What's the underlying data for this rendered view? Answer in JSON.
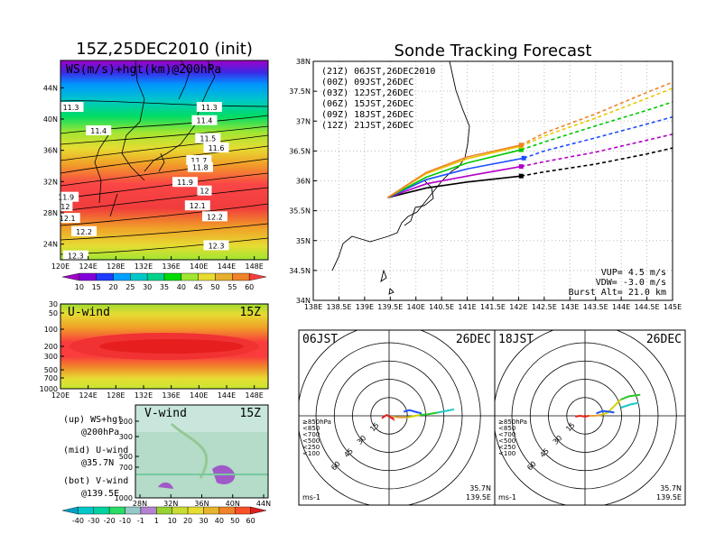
{
  "figure": {
    "left_title": "15Z,25DEC2010 (init)",
    "right_title": "Sonde Tracking Forecast"
  },
  "chart_data": [
    {
      "type": "heatmap",
      "name": "ws-hgt-map",
      "panel_label": "WS(m/s)+hgt(km)@200hPa",
      "lon_ticks": [
        "120E",
        "124E",
        "128E",
        "132E",
        "136E",
        "140E",
        "144E",
        "148E"
      ],
      "lat_ticks": [
        "24N",
        "28N",
        "32N",
        "36N",
        "40N",
        "44N"
      ],
      "xlim": [
        120,
        150
      ],
      "ylim": [
        22,
        47.5
      ],
      "colorbar": {
        "labels": [
          "10",
          "15",
          "20",
          "25",
          "30",
          "35",
          "40",
          "45",
          "50",
          "55",
          "60"
        ],
        "colors": [
          "#a000c8",
          "#8200dc",
          "#1e3cff",
          "#00a0ff",
          "#00c8c8",
          "#00d28c",
          "#00dc00",
          "#a0e632",
          "#e6dc32",
          "#e6af2d",
          "#f08228",
          "#fa3c3c"
        ]
      },
      "contour_labels": [
        {
          "text": "11.3",
          "lon": 121.5,
          "lat": 41.5
        },
        {
          "text": "11.3",
          "lon": 141.5,
          "lat": 41.5
        },
        {
          "text": "11.4",
          "lon": 125.5,
          "lat": 38.5
        },
        {
          "text": "11.4",
          "lon": 140.8,
          "lat": 39.8
        },
        {
          "text": "11.5",
          "lon": 141.3,
          "lat": 37.5
        },
        {
          "text": "11.6",
          "lon": 142.5,
          "lat": 36.3
        },
        {
          "text": "11.7",
          "lon": 140.0,
          "lat": 34.7
        },
        {
          "text": "11.8",
          "lon": 140.2,
          "lat": 33.8
        },
        {
          "text": "11.9",
          "lon": 138.0,
          "lat": 31.9
        },
        {
          "text": "12",
          "lon": 140.8,
          "lat": 30.8
        },
        {
          "text": "12.1",
          "lon": 139.8,
          "lat": 28.9
        },
        {
          "text": "12.2",
          "lon": 142.3,
          "lat": 27.5
        },
        {
          "text": "12.3",
          "lon": 142.5,
          "lat": 23.8
        },
        {
          "text": "11.9",
          "lon": 120.8,
          "lat": 30.0
        },
        {
          "text": "12",
          "lon": 120.7,
          "lat": 28.8
        },
        {
          "text": "12.1",
          "lon": 121.0,
          "lat": 27.3
        },
        {
          "text": "12.2",
          "lon": 123.4,
          "lat": 25.6
        },
        {
          "text": "12.3",
          "lon": 122.2,
          "lat": 22.5
        }
      ]
    },
    {
      "type": "heatmap",
      "name": "u-wind-section",
      "panel_label": "U-wind",
      "time_label": "15Z",
      "lon_ticks": [
        "120E",
        "124E",
        "128E",
        "132E",
        "136E",
        "140E",
        "144E",
        "148E"
      ],
      "p_ticks": [
        "30",
        "50",
        "100",
        "200",
        "300",
        "500",
        "700",
        "1000"
      ]
    },
    {
      "type": "heatmap",
      "name": "v-wind-section",
      "panel_label": "V-wind",
      "time_label": "15Z",
      "lat_ticks": [
        "28N",
        "32N",
        "36N",
        "40N",
        "44N"
      ],
      "p_ticks": [
        "200",
        "300",
        "500",
        "700",
        "1000"
      ],
      "colorbar": {
        "labels": [
          "-40",
          "-30",
          "-20",
          "-10",
          "-1",
          "1",
          "10",
          "20",
          "30",
          "40",
          "50",
          "60"
        ],
        "colors": [
          "#00a0c8",
          "#00c8c8",
          "#00d2a0",
          "#28dc64",
          "#96c8c8",
          "#b482d2",
          "#96d232",
          "#c8dc32",
          "#e6dc32",
          "#e6b42d",
          "#f08228",
          "#fa5028",
          "#dc1e1e"
        ]
      }
    },
    {
      "type": "line",
      "name": "sonde-tracks",
      "xlabel": "",
      "ylabel": "",
      "xlim": [
        138,
        145
      ],
      "ylim": [
        34,
        38
      ],
      "x_ticks": [
        "138E",
        "138.5E",
        "139E",
        "139.5E",
        "140E",
        "140.5E",
        "141E",
        "141.5E",
        "142E",
        "142.5E",
        "143E",
        "143.5E",
        "144E",
        "144.5E",
        "145E"
      ],
      "y_ticks": [
        "34N",
        "34.5N",
        "35N",
        "35.5N",
        "36N",
        "36.5N",
        "37N",
        "37.5N",
        "38N"
      ],
      "series": [
        {
          "name": "(21Z)  06JST,26DEC2010",
          "color": "#000000",
          "points": [
            [
              139.45,
              35.72
            ],
            [
              140.2,
              35.88
            ],
            [
              141.0,
              35.98
            ],
            [
              142.05,
              36.08
            ],
            [
              142.5,
              36.15
            ],
            [
              143.5,
              36.28
            ],
            [
              144.5,
              36.45
            ],
            [
              145.0,
              36.55
            ]
          ]
        },
        {
          "name": "(00Z)  09JST,26DEC",
          "color": "#b400c8",
          "points": [
            [
              139.45,
              35.72
            ],
            [
              140.2,
              35.95
            ],
            [
              141.0,
              36.08
            ],
            [
              142.05,
              36.24
            ],
            [
              142.5,
              36.32
            ],
            [
              143.5,
              36.48
            ],
            [
              144.5,
              36.68
            ],
            [
              145.0,
              36.78
            ]
          ]
        },
        {
          "name": "(03Z)  12JST,26DEC",
          "color": "#1e50ff",
          "points": [
            [
              139.45,
              35.72
            ],
            [
              140.2,
              36.02
            ],
            [
              141.0,
              36.2
            ],
            [
              142.1,
              36.38
            ],
            [
              142.5,
              36.5
            ],
            [
              143.5,
              36.72
            ],
            [
              144.5,
              36.95
            ],
            [
              145.0,
              37.07
            ]
          ]
        },
        {
          "name": "(06Z)  15JST,26DEC",
          "color": "#00c800",
          "points": [
            [
              139.45,
              35.72
            ],
            [
              140.2,
              36.06
            ],
            [
              141.0,
              36.3
            ],
            [
              142.05,
              36.52
            ],
            [
              142.5,
              36.65
            ],
            [
              143.5,
              36.92
            ],
            [
              144.5,
              37.18
            ],
            [
              145.0,
              37.32
            ]
          ]
        },
        {
          "name": "(09Z)  18JST,26DEC",
          "color": "#e6c800",
          "points": [
            [
              139.45,
              35.72
            ],
            [
              140.2,
              36.12
            ],
            [
              141.0,
              36.37
            ],
            [
              142.05,
              36.58
            ],
            [
              142.5,
              36.75
            ],
            [
              143.5,
              37.05
            ],
            [
              144.5,
              37.38
            ],
            [
              145.0,
              37.55
            ]
          ]
        },
        {
          "name": "(12Z)  21JST,26DEC",
          "color": "#f08228",
          "points": [
            [
              139.45,
              35.72
            ],
            [
              140.2,
              36.14
            ],
            [
              141.0,
              36.4
            ],
            [
              142.05,
              36.6
            ],
            [
              142.5,
              36.8
            ],
            [
              143.5,
              37.12
            ],
            [
              144.5,
              37.48
            ],
            [
              145.0,
              37.65
            ]
          ]
        }
      ],
      "info": {
        "line1": "VUP= 4.5 m/s",
        "line2": "VDW= -3.0 m/s",
        "line3": "Burst Alt= 21.0 km"
      }
    },
    {
      "type": "line",
      "name": "hodograph-06jst",
      "panel_label": "06JST",
      "date_label": "26DEC",
      "ring_labels": [
        "15",
        "30",
        "45",
        "60"
      ],
      "units": "ms-1",
      "location": {
        "lat": "35.7N",
        "lon": "139.5E"
      },
      "legend": [
        {
          "text": "≥850hPa",
          "color": "#e61e1e"
        },
        {
          "text": "<850",
          "color": "#e6a03c"
        },
        {
          "text": "<700",
          "color": "#d2d200"
        },
        {
          "text": "<500",
          "color": "#28c828"
        },
        {
          "text": "<250",
          "color": "#1ec8c8"
        },
        {
          "text": "<100",
          "color": "#1e50ff"
        }
      ],
      "segments": [
        {
          "color": "#e61e1e",
          "points": [
            [
              -9,
              -3
            ],
            [
              -3,
              1
            ],
            [
              2,
              -2
            ],
            [
              5,
              -4
            ],
            [
              4,
              -1
            ]
          ]
        },
        {
          "color": "#e6a03c",
          "points": [
            [
              4,
              -1
            ],
            [
              12,
              -2
            ],
            [
              22,
              -2
            ]
          ]
        },
        {
          "color": "#d2d200",
          "points": [
            [
              22,
              -2
            ],
            [
              28,
              -1
            ],
            [
              32,
              0
            ],
            [
              38,
              1
            ]
          ]
        },
        {
          "color": "#28c828",
          "points": [
            [
              38,
              1
            ],
            [
              48,
              2
            ],
            [
              60,
              4
            ]
          ]
        },
        {
          "color": "#1ec8c8",
          "points": [
            [
              60,
              4
            ],
            [
              70,
              6
            ],
            [
              80,
              8
            ]
          ]
        },
        {
          "color": "#1e50ff",
          "points": [
            [
              18,
              5
            ],
            [
              25,
              7
            ],
            [
              32,
              5
            ],
            [
              40,
              3
            ]
          ]
        }
      ]
    },
    {
      "type": "line",
      "name": "hodograph-18jst",
      "panel_label": "18JST",
      "date_label": "26DEC",
      "ring_labels": [
        "15",
        "30",
        "45",
        "60"
      ],
      "units": "ms-1",
      "location": {
        "lat": "35.7N",
        "lon": "139.5E"
      },
      "legend": [
        {
          "text": "≥850hPa",
          "color": "#e61e1e"
        },
        {
          "text": "<850",
          "color": "#e6a03c"
        },
        {
          "text": "<700",
          "color": "#d2d200"
        },
        {
          "text": "<500",
          "color": "#28c828"
        },
        {
          "text": "<250",
          "color": "#1ec8c8"
        },
        {
          "text": "<100",
          "color": "#1e50ff"
        }
      ],
      "segments": [
        {
          "color": "#e61e1e",
          "points": [
            [
              -12,
              -1
            ],
            [
              -6,
              0
            ],
            [
              0,
              -1
            ],
            [
              5,
              0
            ]
          ]
        },
        {
          "color": "#e6a03c",
          "points": [
            [
              5,
              0
            ],
            [
              12,
              0
            ],
            [
              20,
              1
            ]
          ]
        },
        {
          "color": "#d2d200",
          "points": [
            [
              20,
              1
            ],
            [
              28,
              4
            ],
            [
              36,
              12
            ],
            [
              44,
              20
            ]
          ]
        },
        {
          "color": "#28c828",
          "points": [
            [
              44,
              20
            ],
            [
              54,
              24
            ],
            [
              68,
              26
            ]
          ]
        },
        {
          "color": "#1ec8c8",
          "points": [
            [
              44,
              10
            ],
            [
              56,
              14
            ],
            [
              66,
              16
            ]
          ]
        },
        {
          "color": "#1e50ff",
          "points": [
            [
              14,
              3
            ],
            [
              22,
              6
            ],
            [
              30,
              5
            ],
            [
              36,
              4
            ]
          ]
        }
      ]
    }
  ],
  "legend_text": {
    "up1": "(up) WS+hgt",
    "up2": "@200hPa",
    "mid1": "(mid) U-wind",
    "mid2": "@35.7N",
    "bot1": "(bot) V-wind",
    "bot2": "@139.5E"
  }
}
